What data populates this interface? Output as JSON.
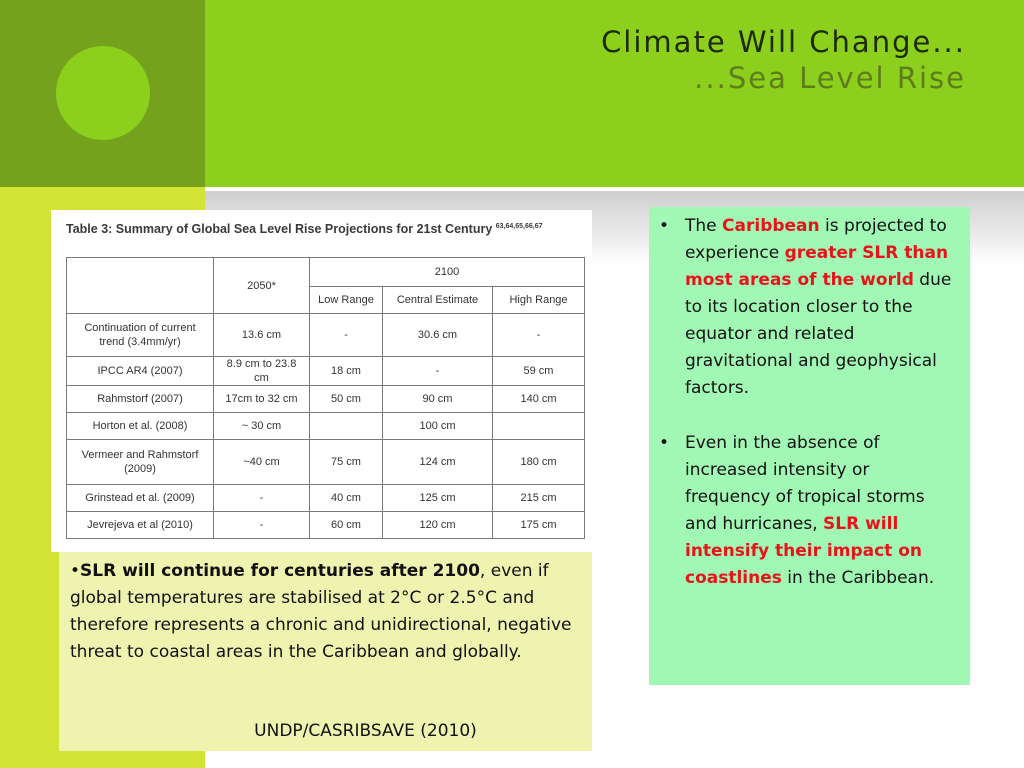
{
  "slide": {
    "title_line1": "Climate Will Change...",
    "title_line2": "...Sea Level Rise"
  },
  "table": {
    "caption": "Table 3: Summary of Global Sea Level Rise Projections for 21st Century",
    "caption_refs": "63,64,65,66,67",
    "header_2050": "2050*",
    "header_2100": "2100",
    "sub_headers": [
      "Low Range",
      "Central Estimate",
      "High Range"
    ],
    "rows": [
      {
        "source": "Continuation of current trend (3.4mm/yr)",
        "y2050": "13.6 cm",
        "low": "-",
        "central": "30.6 cm",
        "high": "-"
      },
      {
        "source": "IPCC AR4 (2007)",
        "y2050": "8.9 cm to 23.8 cm",
        "low": "18 cm",
        "central": "-",
        "high": "59 cm"
      },
      {
        "source": "Rahmstorf (2007)",
        "y2050": "17cm to 32 cm",
        "low": "50 cm",
        "central": "90 cm",
        "high": "140 cm"
      },
      {
        "source": "Horton et al. (2008)",
        "y2050": "~ 30 cm",
        "low": "",
        "central": "100 cm",
        "high": ""
      },
      {
        "source": "Vermeer and Rahmstorf (2009)",
        "y2050": "~40 cm",
        "low": "75 cm",
        "central": "124 cm",
        "high": "180 cm"
      },
      {
        "source": "Grinstead et al. (2009)",
        "y2050": "-",
        "low": "40 cm",
        "central": "125 cm",
        "high": "215 cm"
      },
      {
        "source": "Jevrejeva et al (2010)",
        "y2050": "-",
        "low": "60 cm",
        "central": "120 cm",
        "high": "175 cm"
      }
    ]
  },
  "note": {
    "bullet": "•",
    "bold_lead": "SLR will continue for centuries after 2100",
    "rest": ", even if global temperatures are stabilised at 2°C or 2.5°C and therefore represents a chronic and unidirectional, negative threat to coastal areas in the Caribbean and globally.",
    "source": "UNDP/CASRIBSAVE (2010)"
  },
  "bullets": {
    "marker": "•",
    "b1_part1": "The ",
    "b1_red1": "Caribbean",
    "b1_part2": " is projected to experience ",
    "b1_red2": "greater SLR than most areas of the world",
    "b1_part3": " due to its location closer to the equator and related gravitational and geophysical factors.",
    "b2_part1": "Even in the absence of increased intensity or frequency of tropical storms and hurricanes, ",
    "b2_red": "SLR will intensify their impact on coastlines",
    "b2_part2": " in the Caribbean."
  },
  "colors": {
    "dark_green": "#74a21c",
    "lime": "#8ccf1c",
    "yellow_green": "#d3e336",
    "note_bg": "#eef4b0",
    "bullet_bg": "#a1f7b4",
    "accent_red": "#e8141c"
  }
}
